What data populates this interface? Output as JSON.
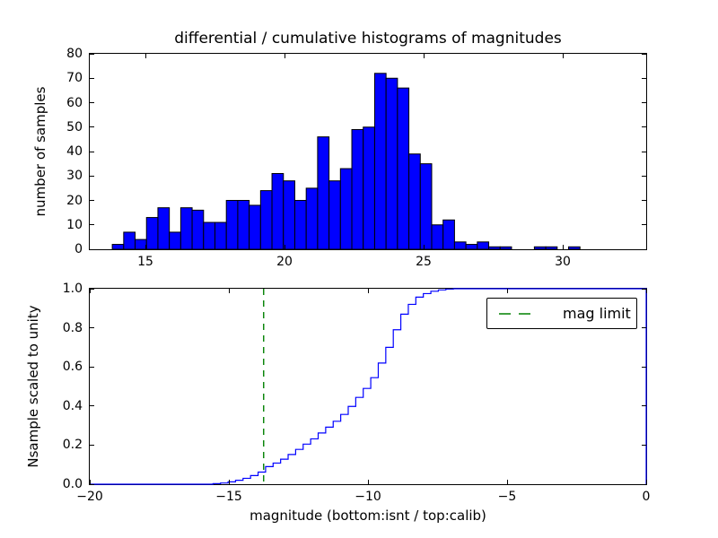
{
  "title": "differential / cumulative histograms of magnitudes",
  "colors": {
    "hist_fill": "#0000ff",
    "hist_edge": "#000000",
    "step_line": "#0000ff",
    "mag_limit_line": "#008000",
    "axis": "#000000",
    "background": "#ffffff"
  },
  "chart_data": [
    {
      "type": "bar",
      "name": "differential-histogram",
      "title": "differential / cumulative histograms of magnitudes",
      "ylabel": "number of samples",
      "xlim": [
        13,
        33
      ],
      "ylim": [
        0,
        80
      ],
      "grid": false,
      "xtick_values": [
        15,
        20,
        25,
        30
      ],
      "xtick_labels": [
        "15",
        "20",
        "25",
        "30"
      ],
      "ytick_values": [
        0,
        10,
        20,
        30,
        40,
        50,
        60,
        70,
        80
      ],
      "ytick_labels": [
        "0",
        "10",
        "20",
        "30",
        "40",
        "50",
        "60",
        "70",
        "80"
      ],
      "bin_start": 13.81,
      "bin_width": 0.41,
      "counts": [
        2,
        7,
        4,
        13,
        17,
        7,
        17,
        16,
        11,
        11,
        20,
        20,
        18,
        24,
        31,
        28,
        20,
        25,
        46,
        28,
        33,
        49,
        50,
        72,
        70,
        66,
        39,
        35,
        10,
        12,
        3,
        2,
        3,
        1,
        1,
        0,
        0,
        1,
        1,
        0,
        1
      ]
    },
    {
      "type": "line",
      "name": "cumulative-histogram",
      "ylabel": "Nsample scaled to unity",
      "xlabel": "magnitude (bottom:isnt / top:calib)",
      "xlim": [
        -20,
        0
      ],
      "ylim": [
        0.0,
        1.0
      ],
      "grid": false,
      "xtick_values": [
        -20,
        -15,
        -10,
        -5,
        0
      ],
      "xtick_labels": [
        "−20",
        "−15",
        "−10",
        "−5",
        "0"
      ],
      "ytick_values": [
        0.0,
        0.2,
        0.4,
        0.6,
        0.8,
        1.0
      ],
      "ytick_labels": [
        "0.0",
        "0.2",
        "0.4",
        "0.6",
        "0.8",
        "1.0"
      ],
      "steps": [
        [
          -20,
          0
        ],
        [
          -15.57,
          0.003
        ],
        [
          -15.3,
          0.006
        ],
        [
          -15.03,
          0.012
        ],
        [
          -14.76,
          0.02
        ],
        [
          -14.49,
          0.03
        ],
        [
          -14.22,
          0.044
        ],
        [
          -13.95,
          0.062
        ],
        [
          -13.68,
          0.09
        ],
        [
          -13.41,
          0.108
        ],
        [
          -13.14,
          0.128
        ],
        [
          -12.87,
          0.152
        ],
        [
          -12.6,
          0.178
        ],
        [
          -12.33,
          0.205
        ],
        [
          -12.06,
          0.232
        ],
        [
          -11.79,
          0.262
        ],
        [
          -11.52,
          0.292
        ],
        [
          -11.25,
          0.322
        ],
        [
          -10.98,
          0.357
        ],
        [
          -10.71,
          0.398
        ],
        [
          -10.44,
          0.444
        ],
        [
          -10.17,
          0.49
        ],
        [
          -9.9,
          0.545
        ],
        [
          -9.63,
          0.62
        ],
        [
          -9.36,
          0.7
        ],
        [
          -9.09,
          0.79
        ],
        [
          -8.82,
          0.87
        ],
        [
          -8.55,
          0.92
        ],
        [
          -8.28,
          0.957
        ],
        [
          -8.01,
          0.975
        ],
        [
          -7.74,
          0.987
        ],
        [
          -7.47,
          0.994
        ],
        [
          -7.2,
          0.998
        ],
        [
          -6.93,
          1.0
        ],
        [
          0,
          1.0
        ]
      ],
      "closes_right": true,
      "mag_limit": {
        "x": -13.75,
        "label": "mag limit"
      },
      "legend": {
        "position": "upper right",
        "entries": [
          {
            "label": "mag limit",
            "color": "#008000",
            "style": "dashed"
          }
        ]
      }
    }
  ]
}
